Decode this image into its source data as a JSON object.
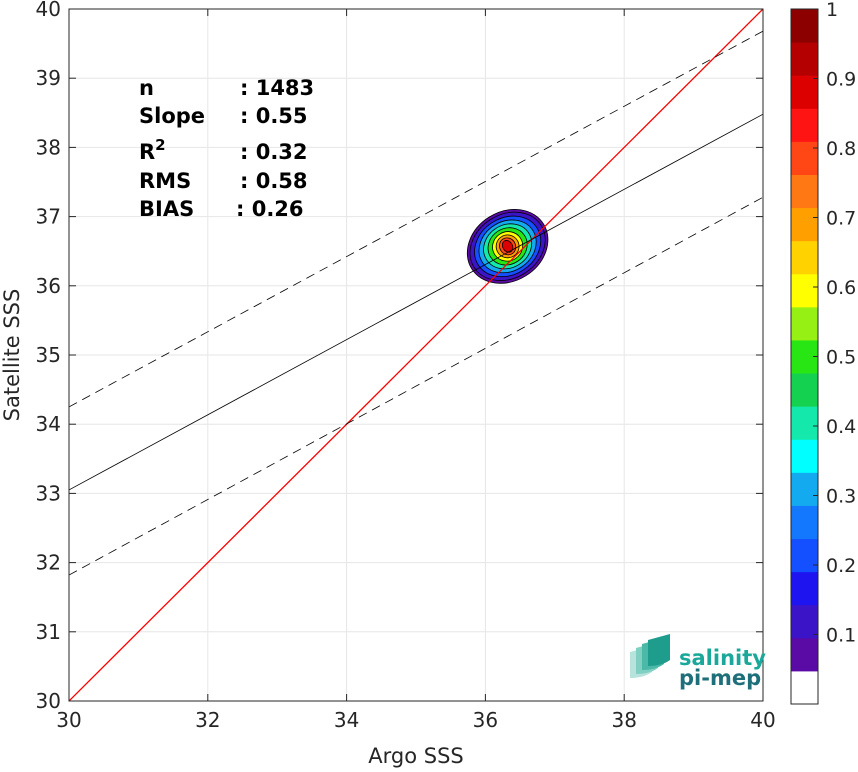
{
  "chart_data": {
    "type": "scatter",
    "subtype": "density-contour",
    "title": "",
    "xlabel": "Argo SSS",
    "ylabel": "Satellite SSS",
    "xlim": [
      30,
      40
    ],
    "ylim": [
      30,
      40
    ],
    "xticks": [
      30,
      32,
      34,
      36,
      38,
      40
    ],
    "yticks": [
      30,
      31,
      32,
      33,
      34,
      35,
      36,
      37,
      38,
      39,
      40
    ],
    "grid": true,
    "stats": [
      {
        "label": "n",
        "value": ": 1483"
      },
      {
        "label": "Slope",
        "value": ": 0.55"
      },
      {
        "label": "R",
        "sup": "2",
        "value": ": 0.32"
      },
      {
        "label": "RMS",
        "value": ": 0.58"
      },
      {
        "label": "BIAS",
        "value": ": 0.26"
      }
    ],
    "lines": [
      {
        "name": "1:1",
        "color": "#ff0000",
        "style": "solid",
        "points": [
          [
            30,
            30
          ],
          [
            40,
            40
          ]
        ]
      },
      {
        "name": "fit",
        "color": "#000000",
        "style": "solid",
        "points": [
          [
            30,
            33.05
          ],
          [
            40,
            38.48
          ]
        ]
      },
      {
        "name": "upper",
        "color": "#000000",
        "style": "dashed",
        "points": [
          [
            30,
            34.25
          ],
          [
            40,
            39.68
          ]
        ]
      },
      {
        "name": "lower",
        "color": "#000000",
        "style": "dashed",
        "points": [
          [
            30,
            31.82
          ],
          [
            40,
            37.28
          ]
        ]
      }
    ],
    "density": {
      "center": [
        36.32,
        36.57
      ],
      "contours": [
        {
          "level": 0.05,
          "rx": 1.22,
          "ry": 1.0,
          "rot": -32
        },
        {
          "level": 0.1,
          "rx": 1.14,
          "ry": 0.92,
          "rot": -32
        },
        {
          "level": 0.2,
          "rx": 1.0,
          "ry": 0.82,
          "rot": -32
        },
        {
          "level": 0.3,
          "rx": 0.86,
          "ry": 0.72,
          "rot": -32
        },
        {
          "level": 0.4,
          "rx": 0.72,
          "ry": 0.62,
          "rot": -32
        },
        {
          "level": 0.5,
          "rx": 0.58,
          "ry": 0.52,
          "rot": -32
        },
        {
          "level": 0.6,
          "rx": 0.44,
          "ry": 0.42,
          "rot": -32
        },
        {
          "level": 0.7,
          "rx": 0.33,
          "ry": 0.33,
          "rot": -32
        },
        {
          "level": 0.8,
          "rx": 0.23,
          "ry": 0.25,
          "rot": -32
        },
        {
          "level": 0.9,
          "rx": 0.14,
          "ry": 0.18,
          "rot": -32
        }
      ]
    },
    "colorbar": {
      "ticks": [
        "0.1",
        "0.2",
        "0.3",
        "0.4",
        "0.5",
        "0.6",
        "0.7",
        "0.8",
        "0.9",
        "1"
      ],
      "colors": [
        "#ffffff",
        "#5a0aa5",
        "#3c14c8",
        "#1e14f0",
        "#1450ff",
        "#1478ff",
        "#14aaf0",
        "#00ffff",
        "#14e8aa",
        "#14d250",
        "#28e614",
        "#96f014",
        "#ffff00",
        "#ffd200",
        "#ffa000",
        "#ff7814",
        "#ff4614",
        "#ff1414",
        "#dc0000",
        "#b40000",
        "#8c0000"
      ]
    },
    "logo": {
      "line1": "salinity",
      "line2": "pi-mep",
      "color": "#1aa89a"
    }
  }
}
